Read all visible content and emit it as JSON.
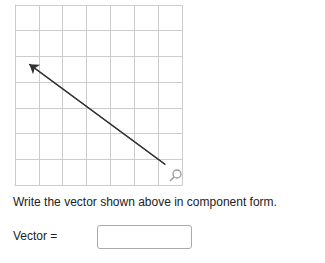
{
  "chart_data": {
    "type": "vector",
    "x": [
      6.3,
      0.6
    ],
    "values": [
      0.8,
      4.7
    ],
    "color": "#333333",
    "xlim": [
      0,
      7
    ],
    "xticks": [
      0,
      1,
      2,
      3,
      4,
      5,
      6,
      7
    ],
    "ylim": [
      0,
      7
    ],
    "yticks": [
      0,
      1,
      2,
      3,
      4,
      5,
      6,
      7
    ],
    "grid": true,
    "tick_labels": false,
    "marker": "arrow"
  },
  "question": "Write the vector shown above in component form.",
  "input_label": "Vector ="
}
